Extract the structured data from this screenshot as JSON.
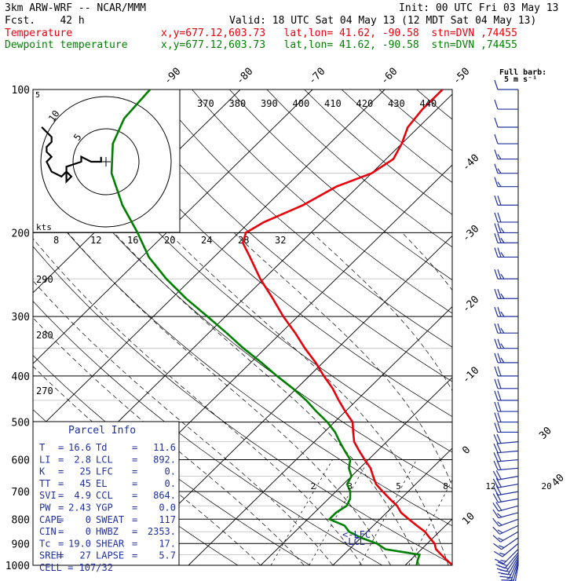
{
  "header": {
    "model": "3km ARW-WRF -- NCAR/MMM",
    "init": "Init: 00 UTC Fri 03 May 13",
    "fcst": "Fcst.    42 h",
    "valid": "Valid: 18 UTC Sat 04 May 13 (12 MDT Sat 04 May 13)",
    "temp_label": "Temperature",
    "dew_label": "Dewpoint temperature",
    "loc_info": "x,y=677.12,603.73   lat,lon= 41.62, -90.58  stn=DVN ,74455"
  },
  "colors": {
    "temperature": "#e8000b",
    "dewpoint": "#008000",
    "barb": "#2030a0",
    "box": "#2030a0"
  },
  "barb_key": {
    "line1": "Full barb:",
    "line2": "5 m s⁻¹"
  },
  "chart_data": {
    "type": "line",
    "subtype": "skew-T log-P",
    "y_axis": {
      "label": "pressure (hPa)",
      "ticks": [
        100,
        200,
        300,
        400,
        500,
        600,
        700,
        800,
        900,
        1000
      ],
      "scale": "log",
      "ylim": [
        1000,
        100
      ]
    },
    "isotherm_labels": [
      "-90",
      "-80",
      "-70",
      "-60",
      "-50",
      "-40",
      "-30",
      "-20",
      "-10",
      "0",
      "10",
      "20",
      "30",
      "40"
    ],
    "theta_labels": [
      "370",
      "380",
      "390",
      "400",
      "410",
      "420",
      "430",
      "440"
    ],
    "theta_low_labels": [
      "290",
      "280",
      "270"
    ],
    "mixing_ratio_labels": [
      "2",
      "3",
      "5",
      "8",
      "12",
      "20"
    ],
    "temperature_series": {
      "name": "Temperature",
      "p": [
        1000,
        975,
        950,
        925,
        900,
        875,
        850,
        825,
        800,
        775,
        750,
        725,
        700,
        675,
        650,
        625,
        600,
        575,
        550,
        525,
        500,
        475,
        450,
        425,
        400,
        375,
        350,
        325,
        300,
        275,
        250,
        225,
        210,
        200,
        190,
        175,
        160,
        150,
        140,
        130,
        120,
        110,
        100
      ],
      "T": [
        16.6,
        15.0,
        13.5,
        12.0,
        11.0,
        9.5,
        8.0,
        6.0,
        4.0,
        2.0,
        0.5,
        -1.5,
        -3.5,
        -5.5,
        -7.0,
        -8.5,
        -10.5,
        -12.5,
        -14.5,
        -16.0,
        -17.5,
        -20.0,
        -22.5,
        -25.0,
        -28.0,
        -31.0,
        -34.5,
        -38.0,
        -42.0,
        -46.0,
        -50.5,
        -55.0,
        -58.0,
        -59.0,
        -58.0,
        -55.0,
        -53.0,
        -50.0,
        -49.0,
        -50.0,
        -51.5,
        -52.0,
        -52.0
      ]
    },
    "dewpoint_series": {
      "name": "Dewpoint temperature",
      "p": [
        1000,
        975,
        950,
        925,
        900,
        875,
        850,
        825,
        800,
        775,
        750,
        725,
        700,
        675,
        650,
        625,
        600,
        575,
        550,
        525,
        500,
        475,
        450,
        425,
        400,
        375,
        350,
        325,
        300,
        275,
        250,
        225,
        200,
        175,
        150,
        130,
        115,
        100
      ],
      "T": [
        11.6,
        11.0,
        10.5,
        5.0,
        3.0,
        0.0,
        -2.5,
        -4.0,
        -7.0,
        -7.0,
        -6.5,
        -7.0,
        -8.0,
        -9.5,
        -10.0,
        -11.5,
        -12.5,
        -14.5,
        -16.5,
        -18.5,
        -21.0,
        -24.0,
        -27.0,
        -30.5,
        -34.5,
        -38.5,
        -43.0,
        -47.5,
        -52.5,
        -58.0,
        -63.5,
        -69.0,
        -74.0,
        -80.0,
        -86.0,
        -90.0,
        -92.0,
        -92.5
      ]
    },
    "markers": {
      "lfc": "<-LFC",
      "lcl": "-LCL"
    },
    "hodograph": {
      "kts_label": "kts",
      "range_ticks": [
        "8",
        "12",
        "16",
        "20",
        "24",
        "28",
        "32"
      ],
      "rings": [
        "5",
        "10"
      ],
      "wind_points": [
        [
          -13,
          7
        ],
        [
          -12,
          6
        ],
        [
          -11,
          5
        ],
        [
          -11,
          4
        ],
        [
          -12,
          3
        ],
        [
          -12,
          2
        ],
        [
          -11,
          1
        ],
        [
          -12,
          0
        ],
        [
          -11,
          -2
        ],
        [
          -9,
          -3
        ],
        [
          -8,
          -2
        ],
        [
          -7,
          -3
        ],
        [
          -8,
          -4
        ],
        [
          -8,
          -1
        ],
        [
          -5,
          0
        ],
        [
          -5,
          1
        ],
        [
          -3,
          0
        ],
        [
          -1,
          0
        ],
        [
          -1,
          1
        ]
      ]
    },
    "barb_axis_labels": [
      "30",
      "40"
    ],
    "winds": [
      {
        "p": 1000,
        "speed": 15,
        "dir": 190
      },
      {
        "p": 990,
        "speed": 15,
        "dir": 195
      },
      {
        "p": 980,
        "speed": 15,
        "dir": 200
      },
      {
        "p": 970,
        "speed": 20,
        "dir": 205
      },
      {
        "p": 960,
        "speed": 20,
        "dir": 210
      },
      {
        "p": 950,
        "speed": 20,
        "dir": 215
      },
      {
        "p": 940,
        "speed": 20,
        "dir": 220
      },
      {
        "p": 925,
        "speed": 15,
        "dir": 225
      },
      {
        "p": 900,
        "speed": 15,
        "dir": 230
      },
      {
        "p": 875,
        "speed": 15,
        "dir": 235
      },
      {
        "p": 850,
        "speed": 15,
        "dir": 240
      },
      {
        "p": 825,
        "speed": 15,
        "dir": 245
      },
      {
        "p": 800,
        "speed": 15,
        "dir": 250
      },
      {
        "p": 775,
        "speed": 15,
        "dir": 255
      },
      {
        "p": 750,
        "speed": 20,
        "dir": 255
      },
      {
        "p": 725,
        "speed": 20,
        "dir": 260
      },
      {
        "p": 700,
        "speed": 20,
        "dir": 260
      },
      {
        "p": 675,
        "speed": 20,
        "dir": 260
      },
      {
        "p": 650,
        "speed": 20,
        "dir": 260
      },
      {
        "p": 625,
        "speed": 20,
        "dir": 265
      },
      {
        "p": 600,
        "speed": 20,
        "dir": 265
      },
      {
        "p": 575,
        "speed": 20,
        "dir": 265
      },
      {
        "p": 550,
        "speed": 20,
        "dir": 265
      },
      {
        "p": 525,
        "speed": 20,
        "dir": 270
      },
      {
        "p": 500,
        "speed": 20,
        "dir": 270
      },
      {
        "p": 475,
        "speed": 20,
        "dir": 270
      },
      {
        "p": 450,
        "speed": 20,
        "dir": 270
      },
      {
        "p": 425,
        "speed": 20,
        "dir": 270
      },
      {
        "p": 400,
        "speed": 20,
        "dir": 270
      },
      {
        "p": 375,
        "speed": 25,
        "dir": 270
      },
      {
        "p": 350,
        "speed": 25,
        "dir": 270
      },
      {
        "p": 325,
        "speed": 25,
        "dir": 270
      },
      {
        "p": 300,
        "speed": 25,
        "dir": 270
      },
      {
        "p": 275,
        "speed": 25,
        "dir": 270
      },
      {
        "p": 250,
        "speed": 25,
        "dir": 270
      },
      {
        "p": 225,
        "speed": 25,
        "dir": 270
      },
      {
        "p": 210,
        "speed": 25,
        "dir": 270
      },
      {
        "p": 200,
        "speed": 25,
        "dir": 270
      },
      {
        "p": 190,
        "speed": 20,
        "dir": 270
      },
      {
        "p": 175,
        "speed": 20,
        "dir": 270
      },
      {
        "p": 160,
        "speed": 15,
        "dir": 270
      },
      {
        "p": 150,
        "speed": 15,
        "dir": 270
      },
      {
        "p": 140,
        "speed": 15,
        "dir": 270
      },
      {
        "p": 130,
        "speed": 10,
        "dir": 270
      },
      {
        "p": 120,
        "speed": 10,
        "dir": 270
      },
      {
        "p": 110,
        "speed": 10,
        "dir": 270
      },
      {
        "p": 100,
        "speed": 10,
        "dir": 270
      }
    ]
  },
  "parcel_info": {
    "title": "Parcel Info",
    "rows": [
      {
        "k1": "T",
        "v1": "16.6",
        "k2": "Td",
        "v2": "11.6"
      },
      {
        "k1": "LI",
        "v1": "2.8",
        "k2": "LCL",
        "v2": "892."
      },
      {
        "k1": "K",
        "v1": "25",
        "k2": "LFC",
        "v2": "0."
      },
      {
        "k1": "TT",
        "v1": "45",
        "k2": "EL",
        "v2": "0."
      },
      {
        "k1": "SVI",
        "v1": "4.9",
        "k2": "CCL",
        "v2": "864."
      },
      {
        "k1": "PW",
        "v1": "2.43",
        "k2": "YGP",
        "v2": "0.0"
      },
      {
        "k1": "CAPE",
        "v1": "0",
        "k2": "SWEAT",
        "v2": "117"
      },
      {
        "k1": "CIN",
        "v1": "0",
        "k2": "HWBZ",
        "v2": "2353."
      },
      {
        "k1": "Tc",
        "v1": "19.0",
        "k2": "SHEAR",
        "v2": "17."
      },
      {
        "k1": "SREH",
        "v1": "27",
        "k2": "LAPSE",
        "v2": "5.7"
      }
    ],
    "cell": "CELL = 107/32"
  }
}
